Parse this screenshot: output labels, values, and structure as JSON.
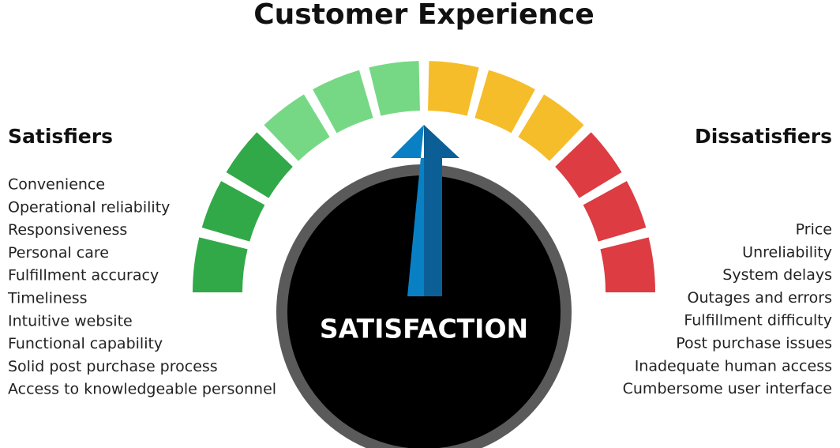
{
  "title": "Customer Experience",
  "satisfiers": {
    "heading": "Satisfiers",
    "items": [
      "Convenience",
      "Operational reliability",
      "Responsiveness",
      "Personal care",
      "Fulfillment accuracy",
      "Timeliness",
      "Intuitive website",
      "Functional capability",
      "Solid post purchase process",
      "Access to knowledgeable personnel"
    ]
  },
  "dissatisfiers": {
    "heading": "Dissatisfiers",
    "items": [
      "Price",
      "Unreliability",
      "System delays",
      "Outages and errors",
      "Fulfillment difficulty",
      "Post purchase issues",
      "Inadequate human access",
      "Cumbersome user interface"
    ]
  },
  "gauge_label": "SATISFACTION"
}
